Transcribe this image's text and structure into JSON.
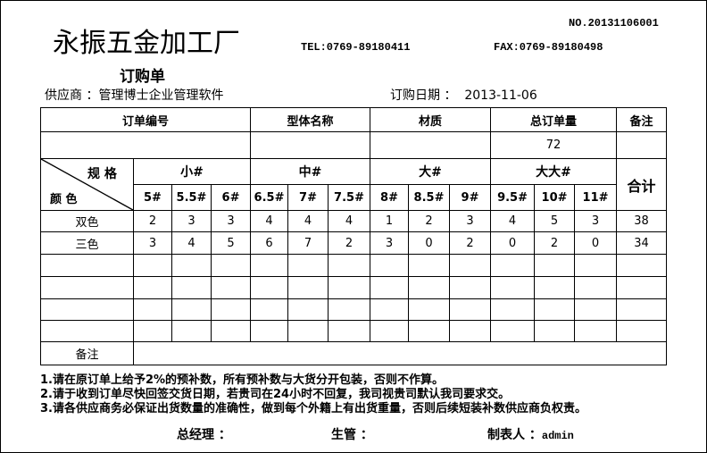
{
  "header": {
    "company": "永振五金加工厂",
    "no": "NO.20131106001",
    "tel": "TEL:0769-89180411",
    "fax": "FAX:0769-89180498",
    "title": "订购单",
    "supplier_label": "供应商 ：",
    "supplier": "管理博士企业管理软件",
    "date_label": "订购日期 ：",
    "date": "2013-11-06"
  },
  "summary": {
    "headers": [
      "订单编号",
      "型体名称",
      "材质",
      "总订单量",
      "备注"
    ],
    "values": [
      "",
      "",
      "",
      "72",
      ""
    ]
  },
  "sizes": {
    "spec_label": "规 格",
    "color_label": "颜 色",
    "groups": [
      "小#",
      "中#",
      "大#",
      "大大#"
    ],
    "sizes": [
      "5#",
      "5.5#",
      "6#",
      "6.5#",
      "7#",
      "7.5#",
      "8#",
      "8.5#",
      "9#",
      "9.5#",
      "10#",
      "11#"
    ],
    "total_label": "合计"
  },
  "rows": [
    {
      "color": "双色",
      "values": [
        "2",
        "3",
        "3",
        "4",
        "4",
        "4",
        "1",
        "2",
        "3",
        "4",
        "5",
        "3"
      ],
      "total": "38"
    },
    {
      "color": "三色",
      "values": [
        "3",
        "4",
        "5",
        "6",
        "7",
        "2",
        "3",
        "0",
        "2",
        "0",
        "2",
        "0"
      ],
      "total": "34"
    }
  ],
  "remark_label": "备注",
  "notes": [
    "1.请在原订单上给予2%的预补数，所有预补数与大货分开包装，否则不作算。",
    "2.请于收到订单尽快回签交货日期，若贵司在24小时不回复，我司视贵司默认我司要求交。",
    "3.请各供应商务必保证出货数量的准确性，做到每个外籍上有出货重量，否则后续短装补数供应商负权责。"
  ],
  "signatures": {
    "manager": "总经理 ：",
    "production": "生管 ：",
    "maker_label": "制表人 ：",
    "maker": "admin"
  }
}
